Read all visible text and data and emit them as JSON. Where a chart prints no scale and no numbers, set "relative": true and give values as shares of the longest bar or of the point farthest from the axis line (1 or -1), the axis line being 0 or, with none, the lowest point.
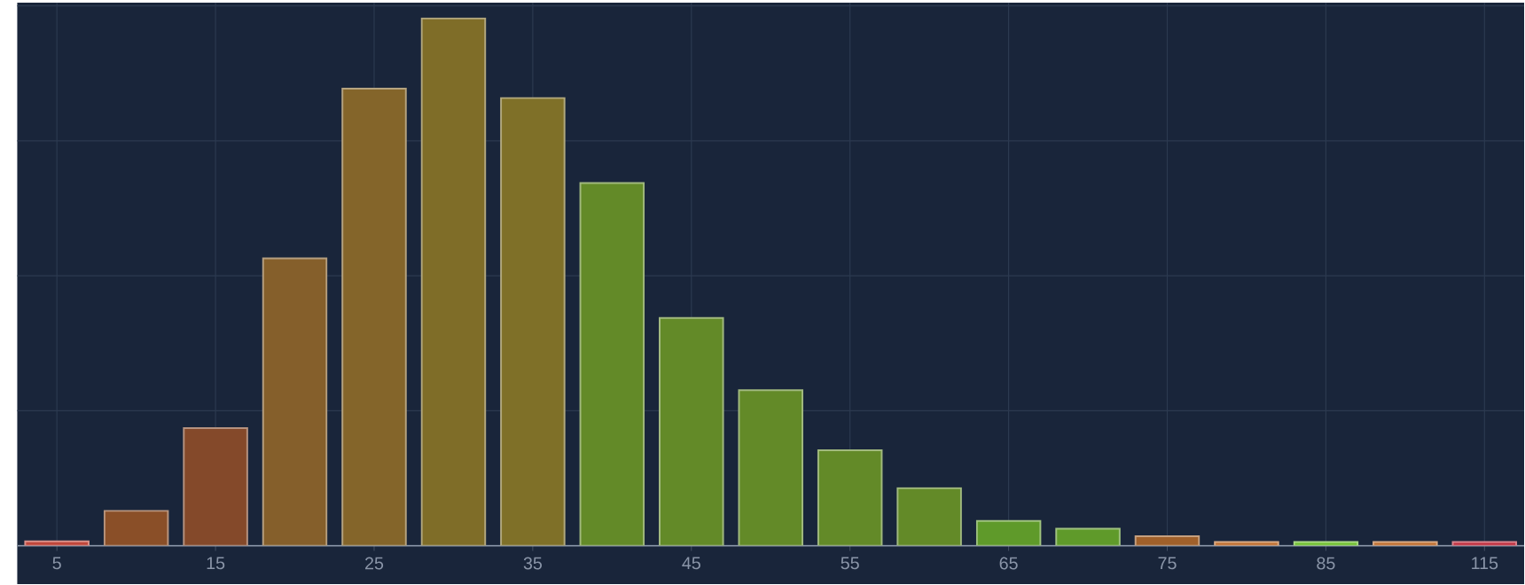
{
  "chart_data": {
    "type": "bar",
    "relative": true,
    "grid": true,
    "categories": [
      "5",
      null,
      "15",
      null,
      "25",
      null,
      "35",
      null,
      "45",
      null,
      "55",
      null,
      "65",
      null,
      "75",
      null,
      "85",
      null,
      "115"
    ],
    "values": [
      0.008,
      0.066,
      0.223,
      0.545,
      0.867,
      1,
      0.849,
      0.688,
      0.432,
      0.295,
      0.181,
      0.109,
      0.047,
      0.032,
      0.018,
      0.007,
      0.007,
      0.007,
      0.007
    ],
    "colors": [
      "#c0463a",
      "#8a4f28",
      "#84492a",
      "#855f2b",
      "#84652a",
      "#7f6d28",
      "#7f7028",
      "#638a28",
      "#638a28",
      "#638a28",
      "#638a28",
      "#638a28",
      "#5f9a2a",
      "#5f9a2a",
      "#a0602a",
      "#c07030",
      "#70c030",
      "#c07030",
      "#c03040"
    ]
  }
}
